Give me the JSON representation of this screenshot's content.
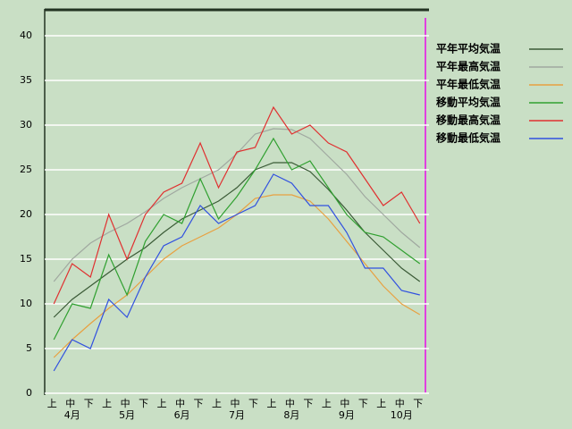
{
  "chart_data": {
    "type": "line",
    "categories": [
      "上",
      "中",
      "下",
      "上",
      "中",
      "下",
      "上",
      "中",
      "下",
      "上",
      "中",
      "下",
      "上",
      "中",
      "下",
      "上",
      "中",
      "下",
      "上",
      "中",
      "下"
    ],
    "month_labels": [
      "4月",
      "5月",
      "6月",
      "7月",
      "8月",
      "9月",
      "10月"
    ],
    "ylim": [
      0,
      43
    ],
    "yticks": [
      0,
      5,
      10,
      15,
      20,
      25,
      30,
      35,
      40
    ],
    "grid": true,
    "series": [
      {
        "name": "平年平均気温",
        "color": "#3a5a36",
        "values": [
          8.5,
          10.5,
          12,
          13.5,
          15,
          16.3,
          18,
          19.5,
          20.5,
          21.5,
          23,
          25,
          25.8,
          25.8,
          24.8,
          22.8,
          20.5,
          18,
          16,
          14,
          12.5
        ]
      },
      {
        "name": "平年最高気温",
        "color": "#a0a8a0",
        "values": [
          12.5,
          15,
          16.8,
          18,
          19,
          20.3,
          21.8,
          23,
          24,
          25,
          26.8,
          29,
          29.6,
          29.5,
          28.5,
          26.5,
          24.5,
          22,
          20,
          18,
          16.3
        ]
      },
      {
        "name": "平年最低気温",
        "color": "#e8a040",
        "values": [
          4,
          6,
          7.8,
          9.5,
          11,
          13,
          15,
          16.5,
          17.5,
          18.5,
          20,
          21.8,
          22.2,
          22.2,
          21.5,
          19.5,
          17,
          14.5,
          12,
          10,
          8.8
        ]
      },
      {
        "name": "移動平均気温",
        "color": "#30a030",
        "values": [
          6,
          10,
          9.5,
          15.5,
          11,
          17,
          20,
          19,
          24,
          19.5,
          22,
          25,
          28.5,
          25,
          26,
          23,
          20,
          18,
          17.5,
          16,
          14.5
        ]
      },
      {
        "name": "移動最高気温",
        "color": "#e03030",
        "values": [
          10,
          14.5,
          13,
          20,
          15,
          20,
          22.5,
          23.5,
          28,
          23,
          27,
          27.5,
          32,
          29,
          30,
          28,
          27,
          24,
          21,
          22.5,
          19
        ]
      },
      {
        "name": "移動最低気温",
        "color": "#3050e0",
        "values": [
          2.5,
          6,
          5,
          10.5,
          8.5,
          13,
          16.5,
          17.5,
          21,
          19,
          20,
          21,
          24.5,
          23.5,
          21,
          21,
          18,
          14,
          14,
          11.5,
          11
        ]
      }
    ]
  }
}
